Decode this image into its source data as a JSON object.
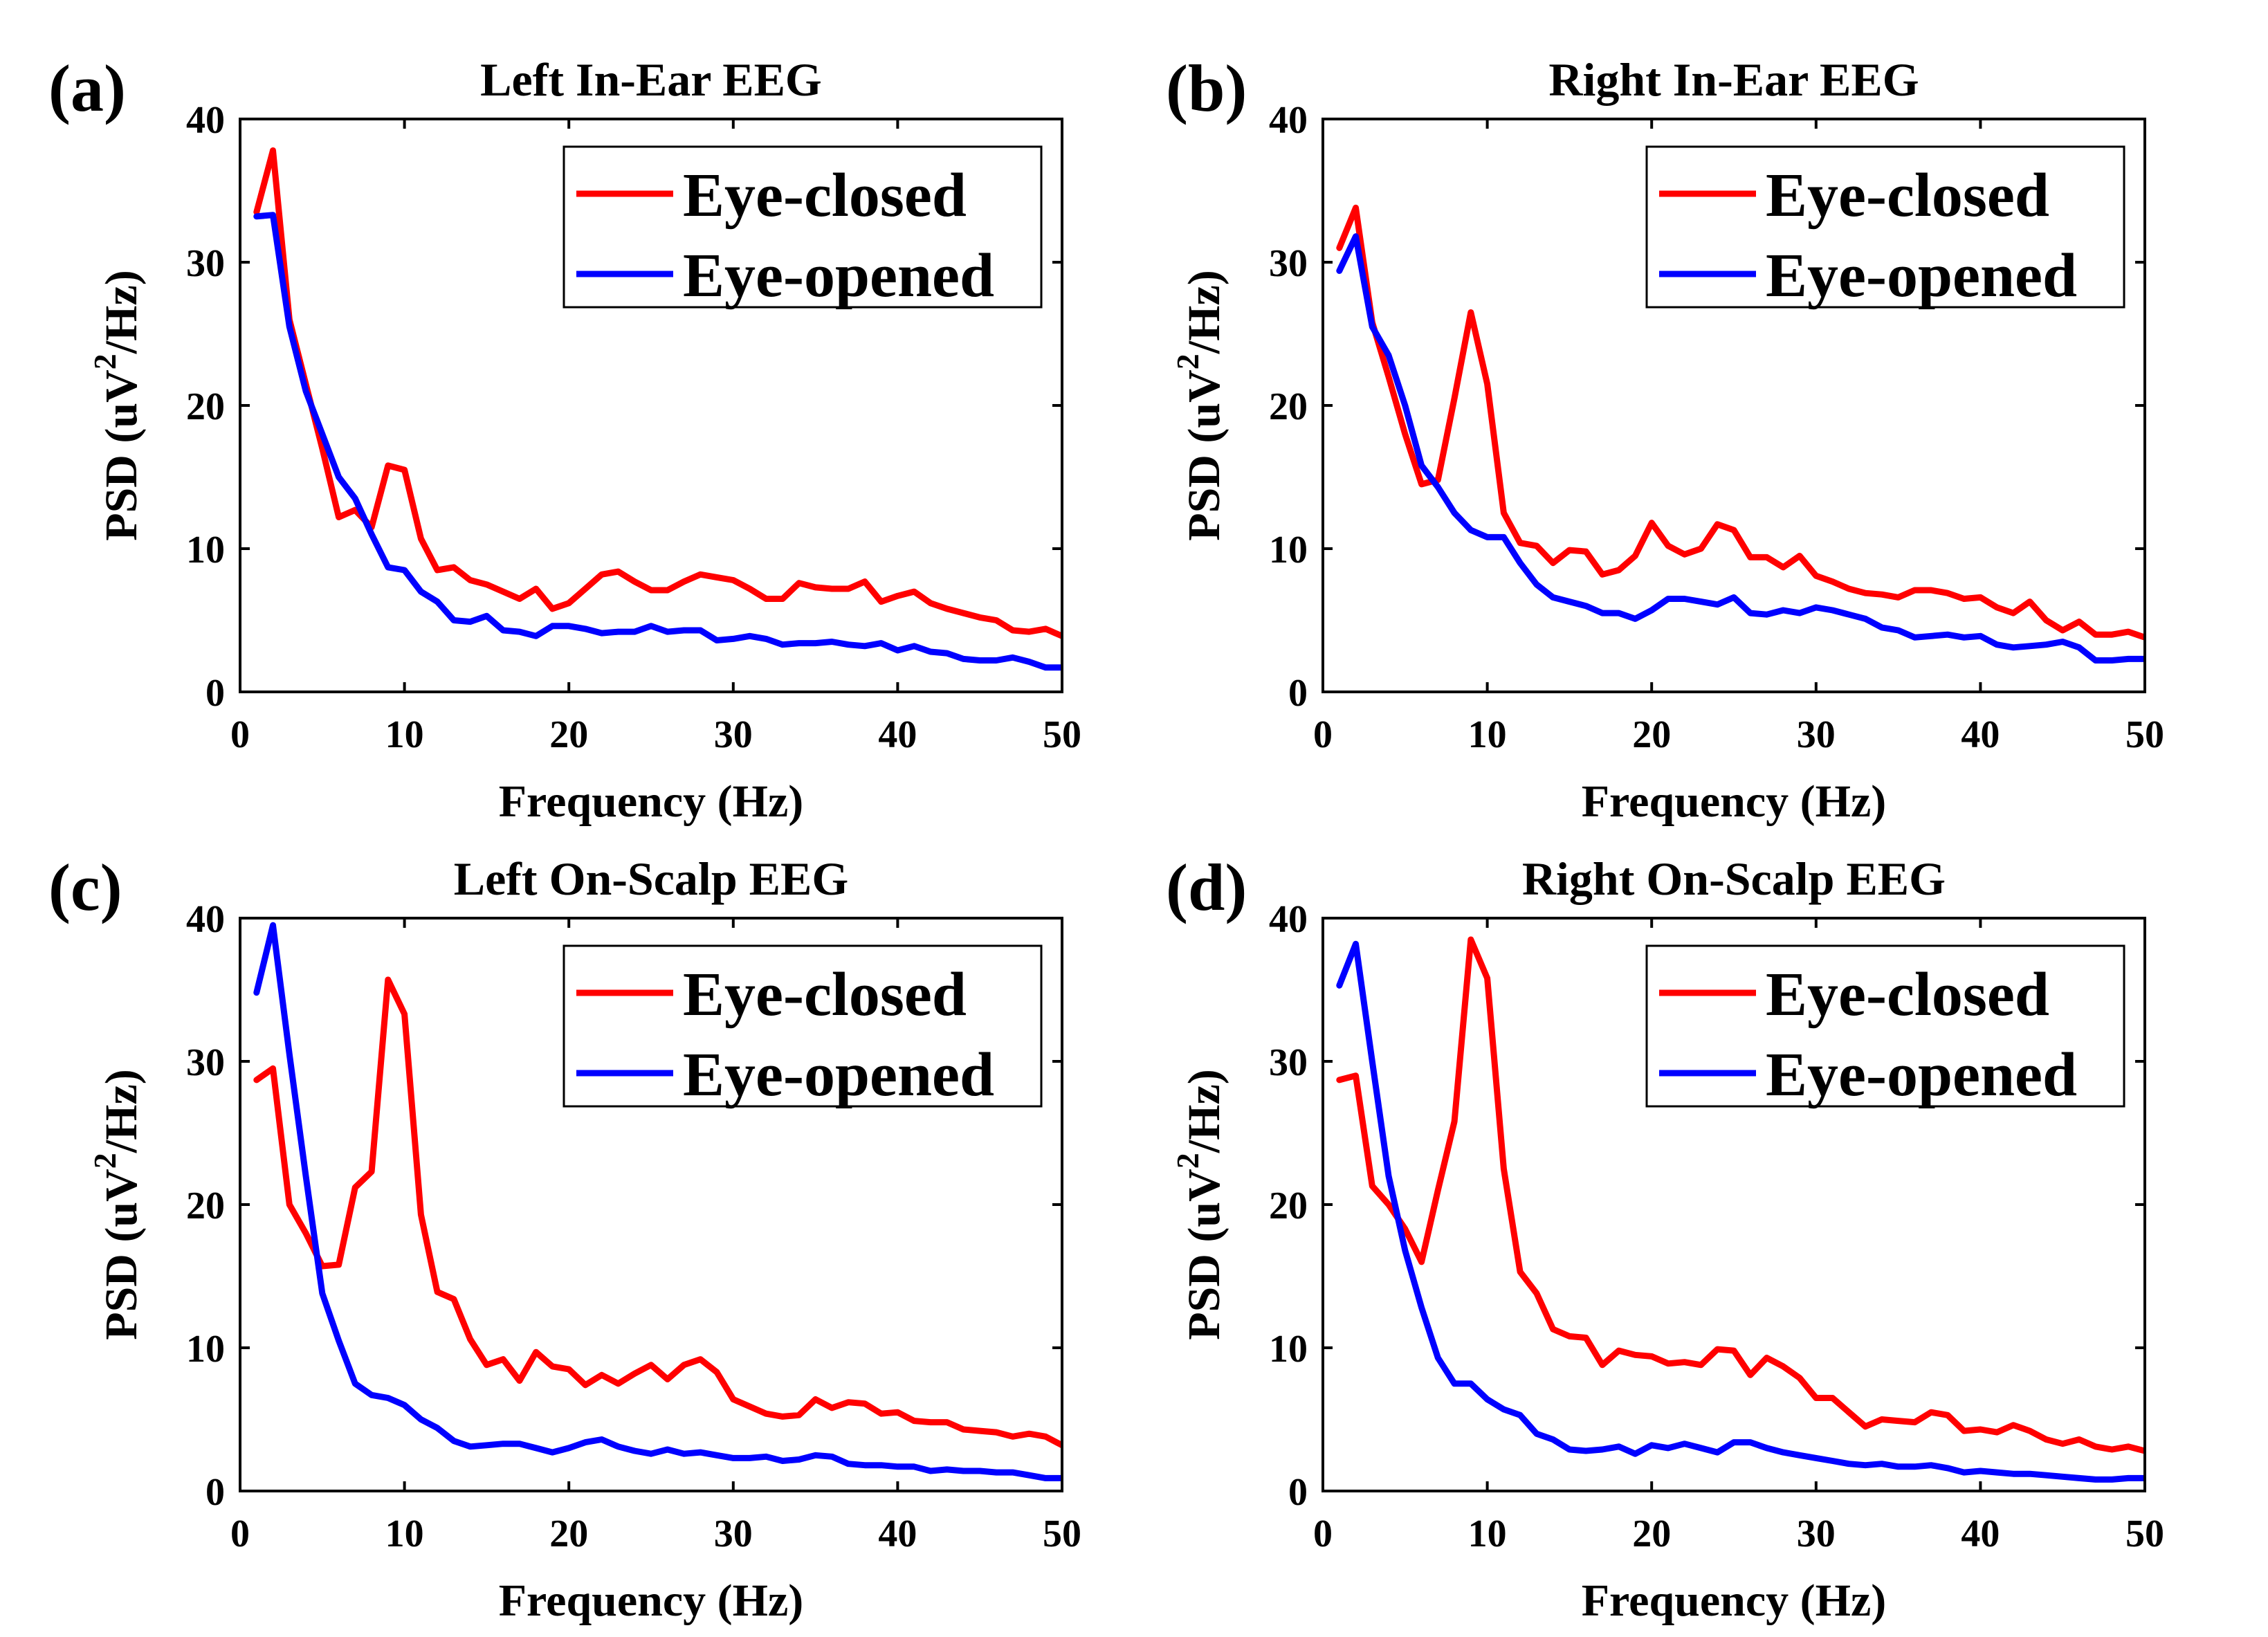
{
  "figure": {
    "series_names": [
      "Eye-closed",
      "Eye-opened"
    ],
    "colors": {
      "eye_closed": "#ff0000",
      "eye_opened": "#0000ff"
    }
  },
  "chart_data": [
    {
      "panel": "(a)",
      "type": "line",
      "title": "Left In-Ear EEG",
      "xlabel": "Frequency (Hz)",
      "ylabel": "PSD (uV2/Hz)",
      "xlim": [
        0,
        50
      ],
      "ylim": [
        0,
        40
      ],
      "xticks": [
        0,
        10,
        20,
        30,
        40,
        50
      ],
      "yticks": [
        0,
        10,
        20,
        30,
        40
      ],
      "legend_position": "top-right",
      "x": [
        1,
        2,
        3,
        4,
        5,
        6,
        7,
        8,
        9,
        10,
        11,
        12,
        13,
        14,
        15,
        16,
        17,
        18,
        19,
        20,
        21,
        22,
        23,
        24,
        25,
        26,
        27,
        28,
        29,
        30,
        31,
        32,
        33,
        34,
        35,
        36,
        37,
        38,
        39,
        40,
        41,
        42,
        43,
        44,
        45,
        46,
        47,
        48,
        49,
        50
      ],
      "series": [
        {
          "name": "Eye-closed",
          "color": "#ff0000",
          "values": [
            33.5,
            37.8,
            26,
            21.5,
            17,
            12.2,
            12.7,
            11.5,
            15.8,
            15.5,
            10.7,
            8.5,
            8.7,
            7.8,
            7.5,
            7,
            6.5,
            7.2,
            5.8,
            6.2,
            7.2,
            8.2,
            8.4,
            7.7,
            7.1,
            7.1,
            7.7,
            8.2,
            8,
            7.8,
            7.2,
            6.5,
            6.5,
            7.6,
            7.3,
            7.2,
            7.2,
            7.7,
            6.3,
            6.7,
            7,
            6.2,
            5.8,
            5.5,
            5.2,
            5,
            4.3,
            4.2,
            4.4,
            3.9
          ]
        },
        {
          "name": "Eye-opened",
          "color": "#0000ff",
          "values": [
            33.2,
            33.3,
            25.5,
            21,
            18,
            15,
            13.5,
            11,
            8.7,
            8.5,
            7,
            6.3,
            5,
            4.9,
            5.3,
            4.3,
            4.2,
            3.9,
            4.6,
            4.6,
            4.4,
            4.1,
            4.2,
            4.2,
            4.6,
            4.2,
            4.3,
            4.3,
            3.6,
            3.7,
            3.9,
            3.7,
            3.3,
            3.4,
            3.4,
            3.5,
            3.3,
            3.2,
            3.4,
            2.9,
            3.2,
            2.8,
            2.7,
            2.3,
            2.2,
            2.2,
            2.4,
            2.1,
            1.7,
            1.7
          ]
        }
      ]
    },
    {
      "panel": "(b)",
      "type": "line",
      "title": "Right In-Ear EEG",
      "xlabel": "Frequency (Hz)",
      "ylabel": "PSD (uV2/Hz)",
      "xlim": [
        0,
        50
      ],
      "ylim": [
        0,
        40
      ],
      "xticks": [
        0,
        10,
        20,
        30,
        40,
        50
      ],
      "yticks": [
        0,
        10,
        20,
        30,
        40
      ],
      "legend_position": "top-right",
      "x": [
        1,
        2,
        3,
        4,
        5,
        6,
        7,
        8,
        9,
        10,
        11,
        12,
        13,
        14,
        15,
        16,
        17,
        18,
        19,
        20,
        21,
        22,
        23,
        24,
        25,
        26,
        27,
        28,
        29,
        30,
        31,
        32,
        33,
        34,
        35,
        36,
        37,
        38,
        39,
        40,
        41,
        42,
        43,
        44,
        45,
        46,
        47,
        48,
        49,
        50
      ],
      "series": [
        {
          "name": "Eye-closed",
          "color": "#ff0000",
          "values": [
            31,
            33.8,
            25.8,
            22,
            18,
            14.5,
            14.8,
            20.5,
            26.5,
            21.5,
            12.5,
            10.4,
            10.2,
            9,
            9.9,
            9.8,
            8.2,
            8.5,
            9.5,
            11.8,
            10.2,
            9.6,
            10,
            11.7,
            11.3,
            9.4,
            9.4,
            8.7,
            9.5,
            8.1,
            7.7,
            7.2,
            6.9,
            6.8,
            6.6,
            7.1,
            7.1,
            6.9,
            6.5,
            6.6,
            5.9,
            5.5,
            6.3,
            5,
            4.3,
            4.9,
            4,
            4,
            4.2,
            3.8
          ]
        },
        {
          "name": "Eye-opened",
          "color": "#0000ff",
          "values": [
            29.4,
            31.8,
            25.5,
            23.5,
            20,
            15.8,
            14.3,
            12.5,
            11.3,
            10.8,
            10.8,
            9,
            7.5,
            6.6,
            6.3,
            6,
            5.5,
            5.5,
            5.1,
            5.7,
            6.5,
            6.5,
            6.3,
            6.1,
            6.6,
            5.5,
            5.4,
            5.7,
            5.5,
            5.9,
            5.7,
            5.4,
            5.1,
            4.5,
            4.3,
            3.8,
            3.9,
            4,
            3.8,
            3.9,
            3.3,
            3.1,
            3.2,
            3.3,
            3.5,
            3.1,
            2.2,
            2.2,
            2.3,
            2.3
          ]
        }
      ]
    },
    {
      "panel": "(c)",
      "type": "line",
      "title": "Left On-Scalp EEG",
      "xlabel": "Frequency (Hz)",
      "ylabel": "PSD (uV2/Hz)",
      "xlim": [
        0,
        50
      ],
      "ylim": [
        0,
        40
      ],
      "xticks": [
        0,
        10,
        20,
        30,
        40,
        50
      ],
      "yticks": [
        0,
        10,
        20,
        30,
        40
      ],
      "legend_position": "top-right",
      "x": [
        1,
        2,
        3,
        4,
        5,
        6,
        7,
        8,
        9,
        10,
        11,
        12,
        13,
        14,
        15,
        16,
        17,
        18,
        19,
        20,
        21,
        22,
        23,
        24,
        25,
        26,
        27,
        28,
        29,
        30,
        31,
        32,
        33,
        34,
        35,
        36,
        37,
        38,
        39,
        40,
        41,
        42,
        43,
        44,
        45,
        46,
        47,
        48,
        49,
        50
      ],
      "series": [
        {
          "name": "Eye-closed",
          "color": "#ff0000",
          "values": [
            28.7,
            29.5,
            20,
            18,
            15.7,
            15.8,
            21.2,
            22.3,
            35.7,
            33.3,
            19.3,
            13.9,
            13.4,
            10.6,
            8.8,
            9.2,
            7.7,
            9.7,
            8.7,
            8.5,
            7.4,
            8.1,
            7.5,
            8.2,
            8.8,
            7.8,
            8.8,
            9.2,
            8.3,
            6.4,
            5.9,
            5.4,
            5.2,
            5.3,
            6.4,
            5.8,
            6.2,
            6.1,
            5.4,
            5.5,
            4.9,
            4.8,
            4.8,
            4.3,
            4.2,
            4.1,
            3.8,
            4,
            3.8,
            3.2
          ]
        },
        {
          "name": "Eye-opened",
          "color": "#0000ff",
          "values": [
            34.8,
            39.5,
            30.5,
            22,
            13.8,
            10.5,
            7.5,
            6.7,
            6.5,
            6,
            5,
            4.4,
            3.5,
            3.1,
            3.2,
            3.3,
            3.3,
            3,
            2.7,
            3,
            3.4,
            3.6,
            3.1,
            2.8,
            2.6,
            2.9,
            2.6,
            2.7,
            2.5,
            2.3,
            2.3,
            2.4,
            2.1,
            2.2,
            2.5,
            2.4,
            1.9,
            1.8,
            1.8,
            1.7,
            1.7,
            1.4,
            1.5,
            1.4,
            1.4,
            1.3,
            1.3,
            1.1,
            0.9,
            0.9
          ]
        }
      ]
    },
    {
      "panel": "(d)",
      "type": "line",
      "title": "Right On-Scalp EEG",
      "xlabel": "Frequency (Hz)",
      "ylabel": "PSD (uV2/Hz)",
      "xlim": [
        0,
        50
      ],
      "ylim": [
        0,
        40
      ],
      "xticks": [
        0,
        10,
        20,
        30,
        40,
        50
      ],
      "yticks": [
        0,
        10,
        20,
        30,
        40
      ],
      "legend_position": "top-right",
      "x": [
        1,
        2,
        3,
        4,
        5,
        6,
        7,
        8,
        9,
        10,
        11,
        12,
        13,
        14,
        15,
        16,
        17,
        18,
        19,
        20,
        21,
        22,
        23,
        24,
        25,
        26,
        27,
        28,
        29,
        30,
        31,
        32,
        33,
        34,
        35,
        36,
        37,
        38,
        39,
        40,
        41,
        42,
        43,
        44,
        45,
        46,
        47,
        48,
        49,
        50
      ],
      "series": [
        {
          "name": "Eye-closed",
          "color": "#ff0000",
          "values": [
            28.7,
            29,
            21.3,
            20,
            18.3,
            16,
            21,
            25.8,
            38.5,
            35.8,
            22.5,
            15.3,
            13.8,
            11.3,
            10.8,
            10.7,
            8.8,
            9.8,
            9.5,
            9.4,
            8.9,
            9,
            8.8,
            9.9,
            9.8,
            8.1,
            9.3,
            8.7,
            7.9,
            6.5,
            6.5,
            5.5,
            4.5,
            5,
            4.9,
            4.8,
            5.5,
            5.3,
            4.2,
            4.3,
            4.1,
            4.6,
            4.2,
            3.6,
            3.3,
            3.6,
            3.1,
            2.9,
            3.1,
            2.8
          ]
        },
        {
          "name": "Eye-opened",
          "color": "#0000ff",
          "values": [
            35.3,
            38.2,
            30,
            22,
            16.8,
            12.8,
            9.3,
            7.5,
            7.5,
            6.4,
            5.7,
            5.3,
            4,
            3.6,
            2.9,
            2.8,
            2.9,
            3.1,
            2.6,
            3.2,
            3,
            3.3,
            3,
            2.7,
            3.4,
            3.4,
            3,
            2.7,
            2.5,
            2.3,
            2.1,
            1.9,
            1.8,
            1.9,
            1.7,
            1.7,
            1.8,
            1.6,
            1.3,
            1.4,
            1.3,
            1.2,
            1.2,
            1.1,
            1,
            0.9,
            0.8,
            0.8,
            0.9,
            0.9
          ]
        }
      ]
    }
  ]
}
